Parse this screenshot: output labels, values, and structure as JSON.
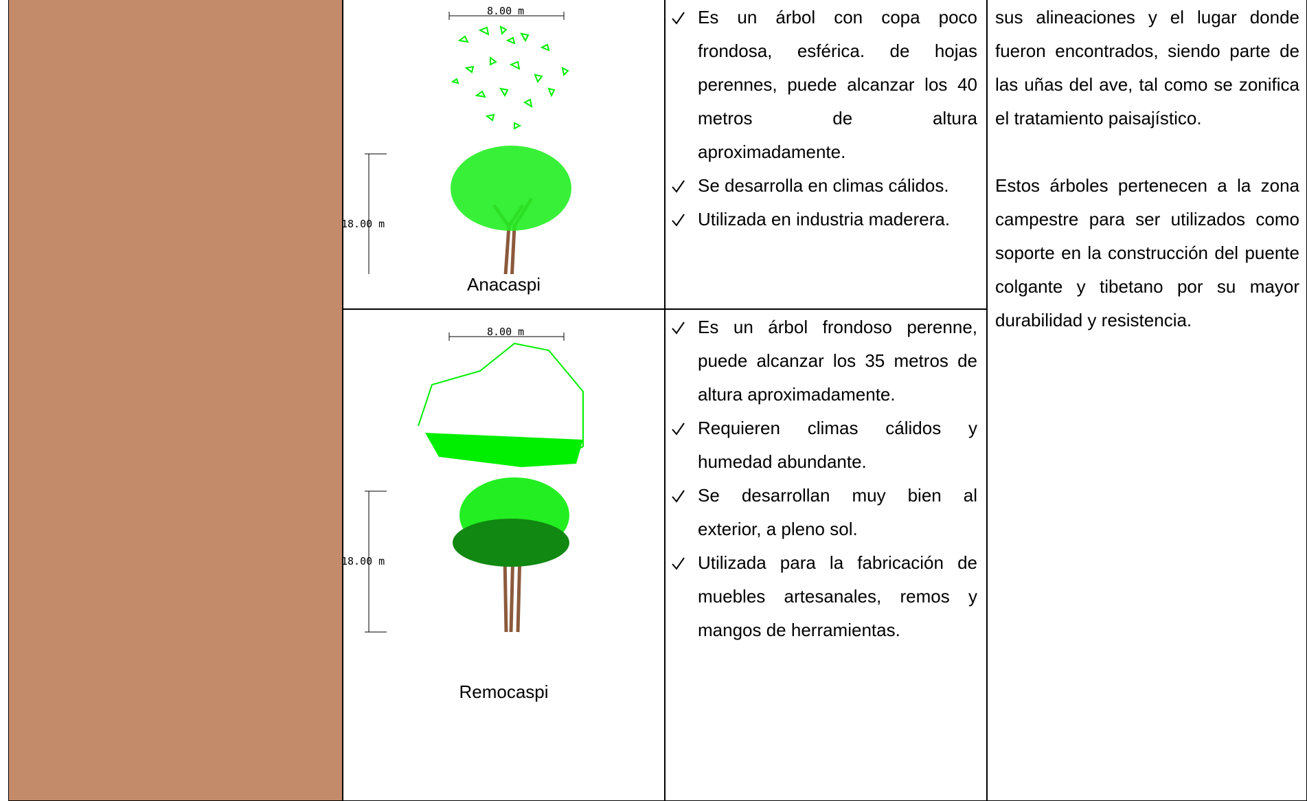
{
  "table": {
    "rows": [
      {
        "drawing": {
          "width_label": "8.00 m",
          "height_label": "18.00 m"
        },
        "caption": "Anacaspi",
        "bullets": [
          "Es un árbol con copa poco frondosa, esférica. de hojas perennes, puede alcanzar los 40 metros de altura aproximadamente.",
          "Se desarrolla en climas cálidos.",
          "Utilizada en industria maderera."
        ]
      },
      {
        "drawing": {
          "width_label": "8.00 m",
          "height_label": "18.00 m"
        },
        "caption": "Remocaspi",
        "bullets": [
          "Es un árbol frondoso perenne, puede alcanzar los 35 metros de altura aproximadamente.",
          "Requieren climas cálidos y humedad abundante.",
          "Se desarrollan muy bien al exterior, a pleno sol.",
          "Utilizada para la fabricación de muebles artesanales, remos y mangos de herramientas."
        ]
      }
    ],
    "description": [
      "sus alineaciones y el lugar donde fueron encontrados, siendo parte de las uñas del ave, tal como se zonifica el tratamiento paisajístico.",
      "Estos árboles pertenecen a la zona campestre para ser utilizados como soporte en la construcción del puente colgante y tibetano por su mayor durabilidad y resistencia."
    ]
  }
}
